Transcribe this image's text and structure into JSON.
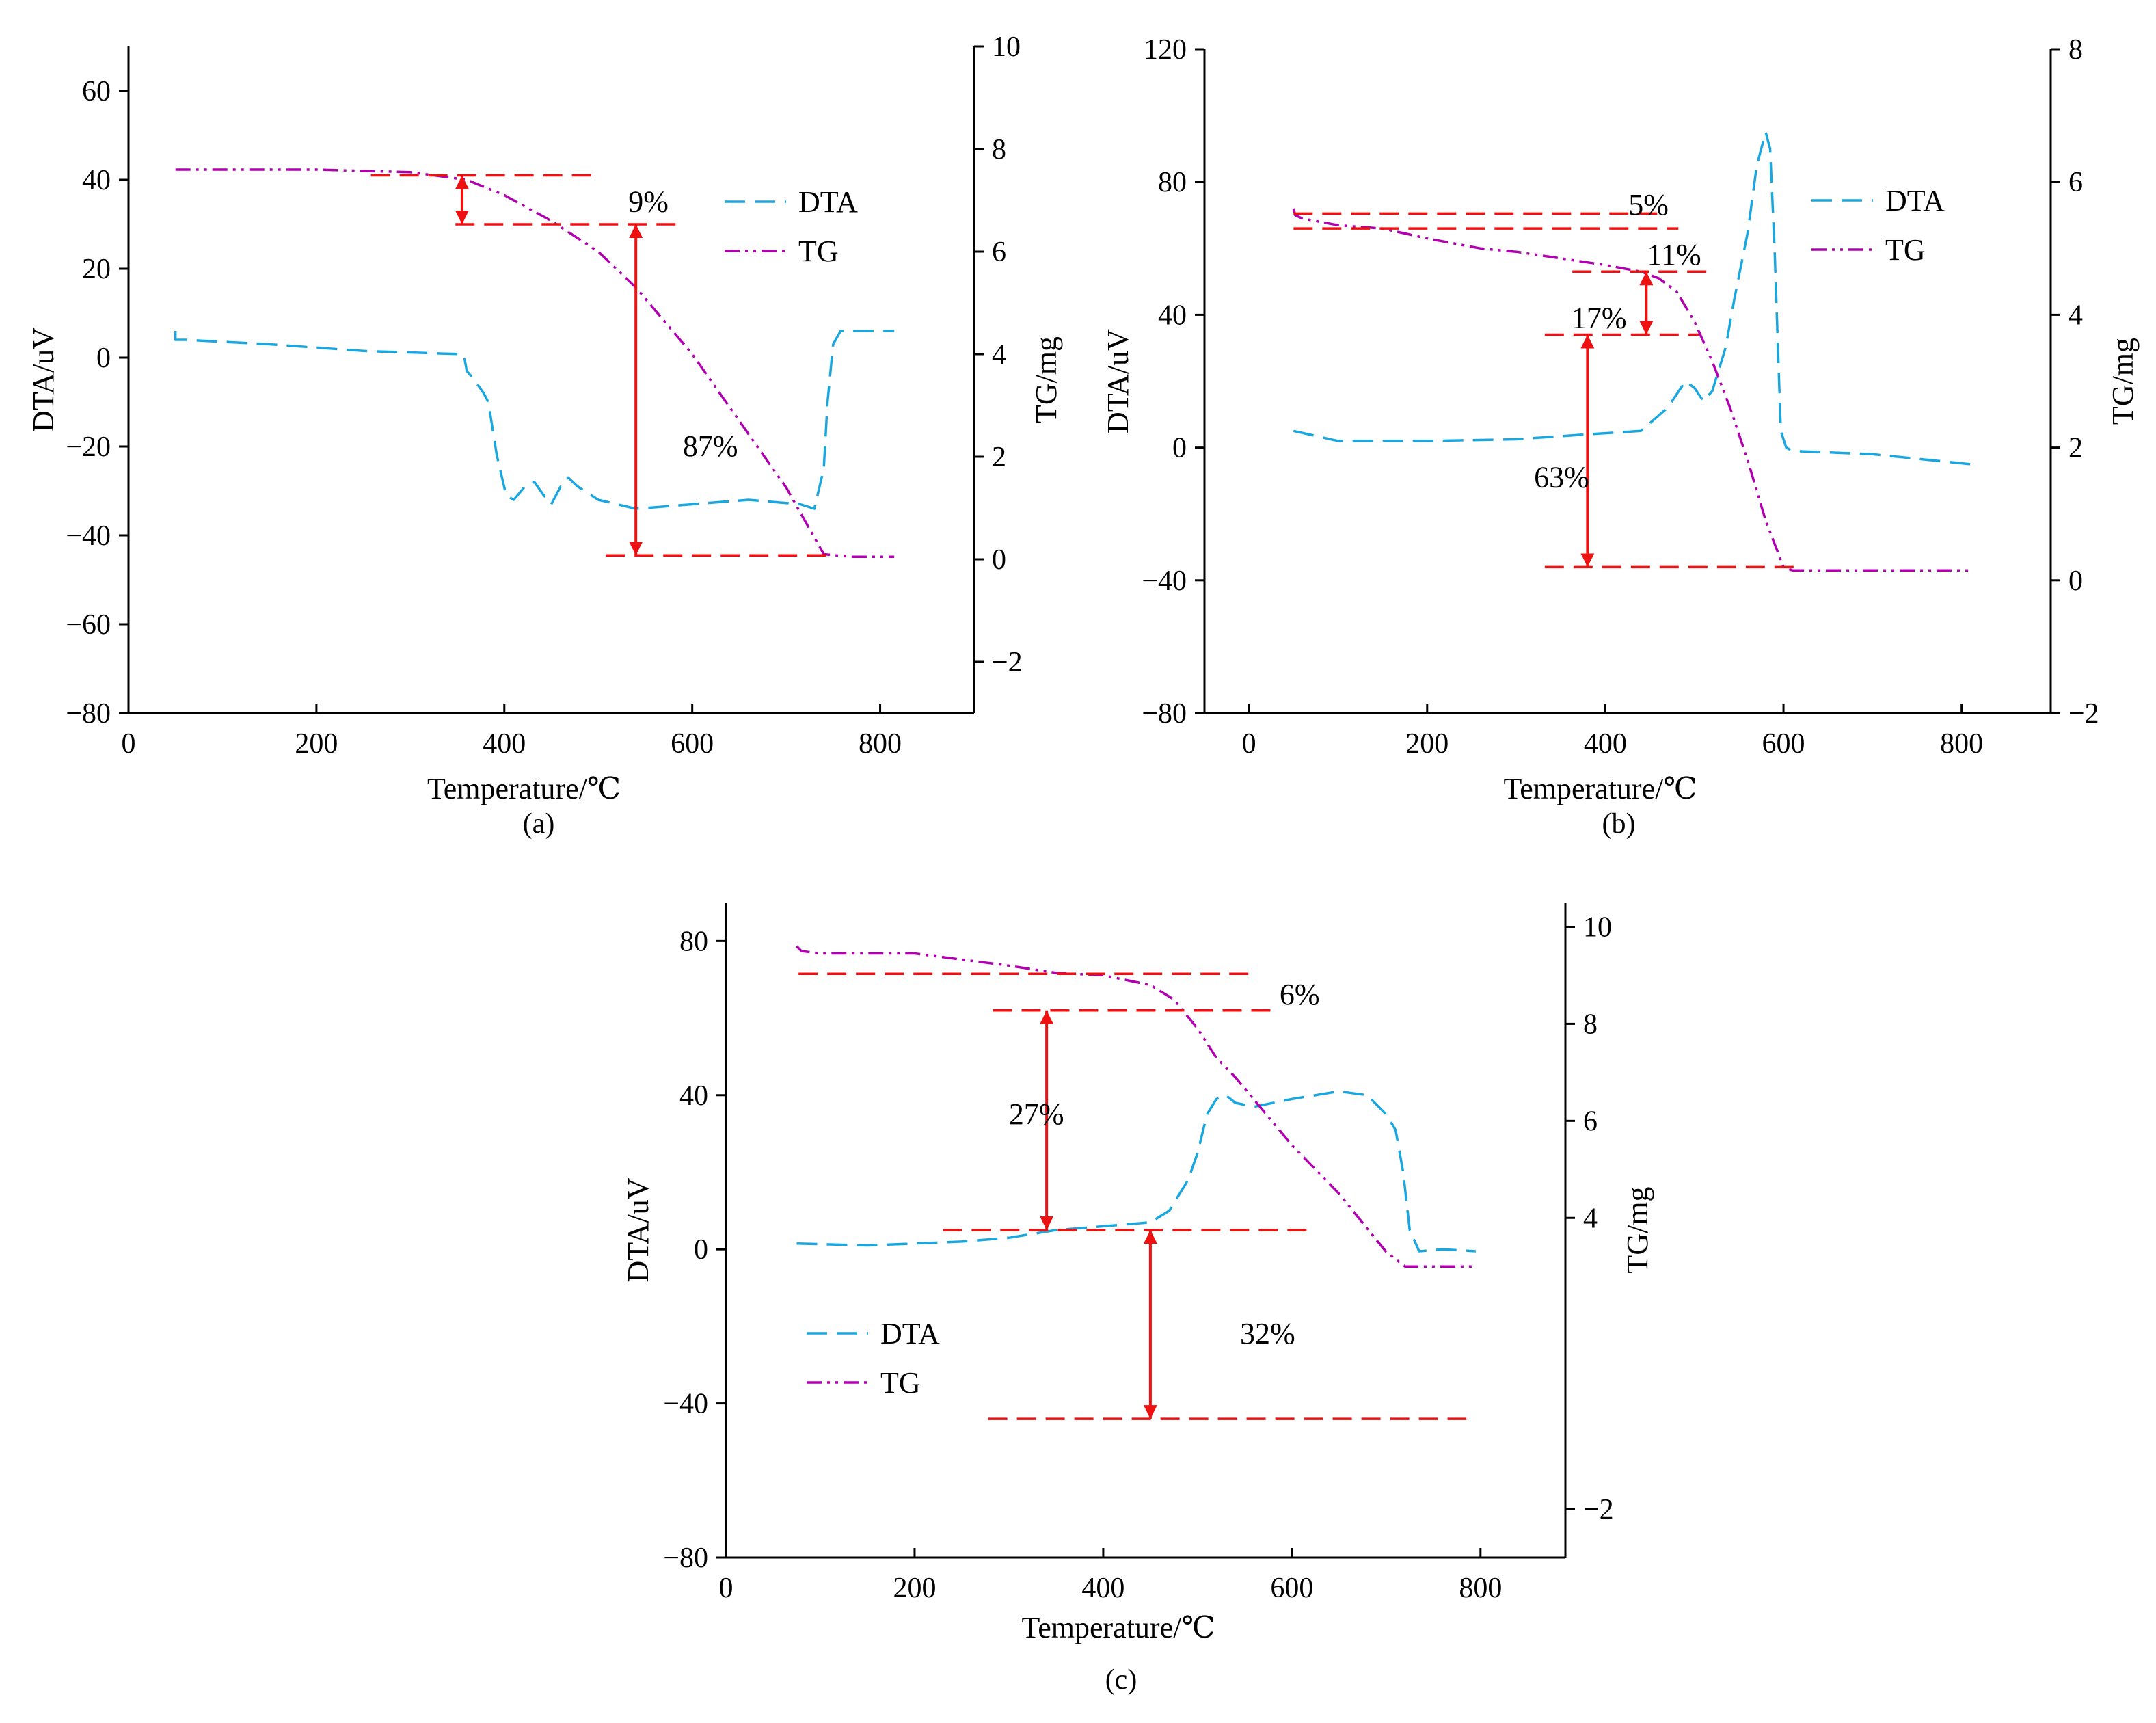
{
  "figure": {
    "panels": [
      "(a)",
      "(b)",
      "(c)"
    ]
  },
  "colors": {
    "dta": "#1aa7df",
    "tg": "#b000b0",
    "annot": "#ee1111",
    "axis": "#000000"
  },
  "chart_data": [
    {
      "type": "line",
      "panel": "(a)",
      "xlabel": "Temperature/℃",
      "ylabel": "DTA/uV",
      "y2label": "TG/mg",
      "xlim": [
        0,
        900
      ],
      "ylim": [
        -80,
        70
      ],
      "y2lim": [
        -3,
        10
      ],
      "xticks": [
        "0",
        "200",
        "400",
        "600",
        "800"
      ],
      "yticks": [
        "60",
        "40",
        "20",
        "0",
        "−20",
        "−40",
        "−60",
        "−80"
      ],
      "y2ticks": [
        "10",
        "8",
        "6",
        "4",
        "2",
        "0",
        "−2"
      ],
      "legend": [
        "DTA",
        "TG"
      ],
      "legend_position": "top-right",
      "series": [
        {
          "name": "DTA",
          "axis": "left",
          "x": [
            50,
            50,
            60,
            150,
            250,
            350,
            357,
            360,
            368,
            378,
            383,
            392,
            402,
            410,
            422,
            432,
            442,
            450,
            460,
            468,
            478,
            500,
            540,
            600,
            660,
            715,
            730,
            740,
            744,
            750,
            758,
            800,
            815
          ],
          "y": [
            6,
            4,
            4,
            3,
            1.5,
            0.8,
            0.5,
            -3,
            -5,
            -8,
            -10,
            -22,
            -31,
            -32,
            -29,
            -28,
            -31,
            -33,
            -29,
            -27,
            -29,
            -32,
            -34,
            -33,
            -32,
            -33,
            -34,
            -25,
            -10,
            3,
            6,
            6,
            6
          ]
        },
        {
          "name": "TG",
          "axis": "right",
          "x": [
            50,
            100,
            200,
            300,
            340,
            360,
            400,
            450,
            500,
            540,
            600,
            650,
            700,
            740,
            770,
            815
          ],
          "y": [
            7.6,
            7.6,
            7.6,
            7.55,
            7.45,
            7.4,
            7.1,
            6.6,
            6.0,
            5.3,
            4.0,
            2.7,
            1.4,
            0.1,
            0.05,
            0.05
          ]
        }
      ],
      "annotations": {
        "hlines": [
          {
            "y": 41,
            "x": [
              258,
              498
            ]
          },
          {
            "y": 30,
            "x": [
              348,
              585
            ]
          },
          {
            "y": -44.5,
            "x": [
              508,
              752
            ]
          }
        ],
        "arrows": [
          {
            "x": 355,
            "y": [
              41,
              30
            ]
          },
          {
            "x": 540,
            "y": [
              30,
              -44.5
            ]
          }
        ],
        "labels": [
          {
            "text": "9%",
            "x": 532,
            "y": 35
          },
          {
            "text": "87%",
            "x": 590,
            "y": -20
          }
        ]
      }
    },
    {
      "type": "line",
      "panel": "(b)",
      "xlabel": "Temperature/℃",
      "ylabel": "DTA/uV",
      "y2label": "TG/mg",
      "xlim": [
        -50,
        900
      ],
      "ylim": [
        -80,
        120
      ],
      "y2lim": [
        -2,
        8
      ],
      "xticks": [
        "0",
        "200",
        "400",
        "600",
        "800"
      ],
      "yticks": [
        "120",
        "80",
        "40",
        "0",
        "−40",
        "−80"
      ],
      "y2ticks": [
        "8",
        "6",
        "4",
        "2",
        "0",
        "−2"
      ],
      "legend": [
        "DTA",
        "TG"
      ],
      "legend_position": "top-right",
      "series": [
        {
          "name": "DTA",
          "axis": "left",
          "x": [
            50,
            100,
            200,
            300,
            380,
            440,
            470,
            490,
            500,
            510,
            520,
            535,
            545,
            560,
            570,
            580,
            585,
            590,
            597,
            603,
            610,
            700,
            810
          ],
          "y": [
            5,
            2,
            2,
            2.5,
            4,
            5,
            12,
            20,
            18,
            14,
            17,
            30,
            45,
            65,
            85,
            95,
            90,
            60,
            5,
            0,
            -1,
            -2,
            -5
          ]
        },
        {
          "name": "TG",
          "axis": "right",
          "x": [
            50,
            52,
            60,
            100,
            150,
            200,
            260,
            300,
            350,
            400,
            440,
            460,
            480,
            500,
            520,
            540,
            560,
            580,
            600,
            610,
            700,
            810
          ],
          "y": [
            5.6,
            5.5,
            5.45,
            5.35,
            5.3,
            5.15,
            5.0,
            4.95,
            4.85,
            4.75,
            4.65,
            4.55,
            4.35,
            3.9,
            3.3,
            2.6,
            1.8,
            0.9,
            0.2,
            0.15,
            0.15,
            0.15
          ]
        }
      ],
      "annotations": {
        "hlines": [
          {
            "y": 70.5,
            "x": [
              50,
              468
            ]
          },
          {
            "y": 66,
            "x": [
              50,
              482
            ]
          },
          {
            "y": 53,
            "x": [
              363,
              523
            ]
          },
          {
            "y": 34,
            "x": [
              332,
              505
            ]
          },
          {
            "y": -36,
            "x": [
              332,
              617
            ]
          }
        ],
        "arrows": [
          {
            "x": 446,
            "y": [
              53,
              34
            ]
          },
          {
            "x": 380,
            "y": [
              34,
              -36
            ]
          }
        ],
        "labels": [
          {
            "text": "5%",
            "x": 426,
            "y": 73
          },
          {
            "text": "11%",
            "x": 447,
            "y": 58
          },
          {
            "text": "17%",
            "x": 362,
            "y": 39
          },
          {
            "text": "63%",
            "x": 320,
            "y": -9
          }
        ]
      }
    },
    {
      "type": "line",
      "panel": "(c)",
      "xlabel": "Temperature/℃",
      "ylabel": "DTA/uV",
      "y2label": "TG/mg",
      "xlim": [
        0,
        890
      ],
      "ylim": [
        -80,
        90
      ],
      "y2lim": [
        -3,
        10.5
      ],
      "xticks": [
        "0",
        "200",
        "400",
        "600",
        "800"
      ],
      "yticks": [
        "80",
        "40",
        "0",
        "−40",
        "−80"
      ],
      "y2ticks": [
        "10",
        "8",
        "6",
        "4",
        "−2"
      ],
      "legend": [
        "DTA",
        "TG"
      ],
      "legend_position": "bottom-left",
      "series": [
        {
          "name": "DTA",
          "axis": "left",
          "x": [
            75,
            150,
            250,
            300,
            350,
            400,
            450,
            470,
            490,
            500,
            510,
            520,
            530,
            540,
            560,
            600,
            650,
            680,
            700,
            710,
            718,
            725,
            735,
            760,
            795
          ],
          "y": [
            1.5,
            1,
            2,
            3,
            5,
            6,
            7,
            10,
            18,
            25,
            35,
            39,
            40,
            38,
            37,
            39,
            41,
            40,
            35,
            31,
            20,
            5,
            -0.5,
            0,
            -0.5
          ]
        },
        {
          "name": "TG",
          "axis": "right",
          "x": [
            75,
            80,
            100,
            200,
            300,
            350,
            400,
            450,
            475,
            500,
            520,
            540,
            570,
            600,
            650,
            700,
            720,
            760,
            795
          ],
          "y": [
            9.6,
            9.5,
            9.45,
            9.45,
            9.2,
            9.05,
            9.0,
            8.8,
            8.5,
            7.9,
            7.3,
            6.9,
            6.2,
            5.5,
            4.5,
            3.3,
            3.0,
            3.0,
            3.0
          ]
        }
      ],
      "annotations": {
        "hlines": [
          {
            "y": 71.5,
            "x": [
              77,
              555
            ]
          },
          {
            "y": 62,
            "x": [
              283,
              585
            ]
          },
          {
            "y": 5,
            "x": [
              230,
              620
            ]
          },
          {
            "y": -44,
            "x": [
              278,
              785
            ]
          }
        ],
        "arrows": [
          {
            "x": 340,
            "y": [
              62,
              5
            ]
          },
          {
            "x": 450,
            "y": [
              5,
              -44
            ]
          }
        ],
        "labels": [
          {
            "text": "6%",
            "x": 587,
            "y": 66
          },
          {
            "text": "27%",
            "x": 300,
            "y": 35
          },
          {
            "text": "32%",
            "x": 545,
            "y": -22
          }
        ]
      }
    }
  ]
}
